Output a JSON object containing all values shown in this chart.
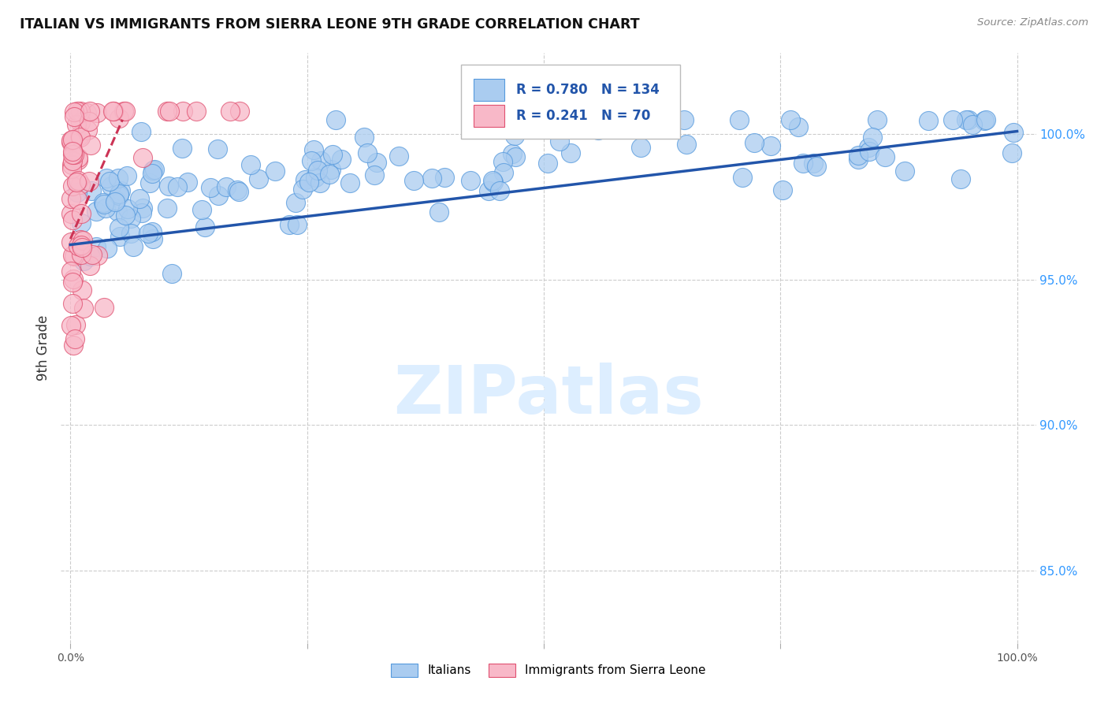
{
  "title": "ITALIAN VS IMMIGRANTS FROM SIERRA LEONE 9TH GRADE CORRELATION CHART",
  "source": "Source: ZipAtlas.com",
  "ylabel": "9th Grade",
  "legend_italian": "Italians",
  "legend_sierra_leone": "Immigrants from Sierra Leone",
  "R_italian": 0.78,
  "N_italian": 134,
  "R_sierra_leone": 0.241,
  "N_sierra_leone": 70,
  "blue_fill": "#aaccf0",
  "blue_edge": "#5599dd",
  "pink_fill": "#f8b8c8",
  "pink_edge": "#e05070",
  "blue_line_color": "#2255aa",
  "pink_line_color": "#cc3355",
  "watermark_color": "#ddeeff",
  "ytick_labels": [
    "85.0%",
    "90.0%",
    "95.0%",
    "100.0%"
  ],
  "ytick_values": [
    0.85,
    0.9,
    0.95,
    1.0
  ],
  "xlim": [
    -0.01,
    1.02
  ],
  "ylim": [
    0.825,
    1.028
  ],
  "blue_trend_x0": 0.0,
  "blue_trend_y0": 0.962,
  "blue_trend_x1": 1.0,
  "blue_trend_y1": 1.001,
  "pink_trend_x0": 0.0,
  "pink_trend_y0": 0.964,
  "pink_trend_x1": 0.055,
  "pink_trend_y1": 1.005
}
